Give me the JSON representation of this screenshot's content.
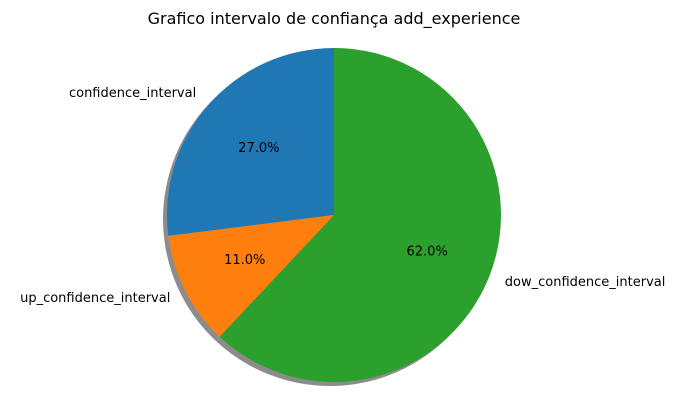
{
  "chart_data": {
    "type": "pie",
    "title": "Grafico intervalo de confiança add_experience",
    "start_angle_deg": 90,
    "direction": "counterclockwise",
    "shadow": true,
    "slices": [
      {
        "label": "confidence_interval",
        "value": 27.0,
        "pct_label": "27.0%",
        "color": "#1f77b4"
      },
      {
        "label": "up_confidence_interval",
        "value": 11.0,
        "pct_label": "11.0%",
        "color": "#ff7f0e"
      },
      {
        "label": "dow_confidence_interval",
        "value": 62.0,
        "pct_label": "62.0%",
        "color": "#2ca02c"
      }
    ]
  }
}
